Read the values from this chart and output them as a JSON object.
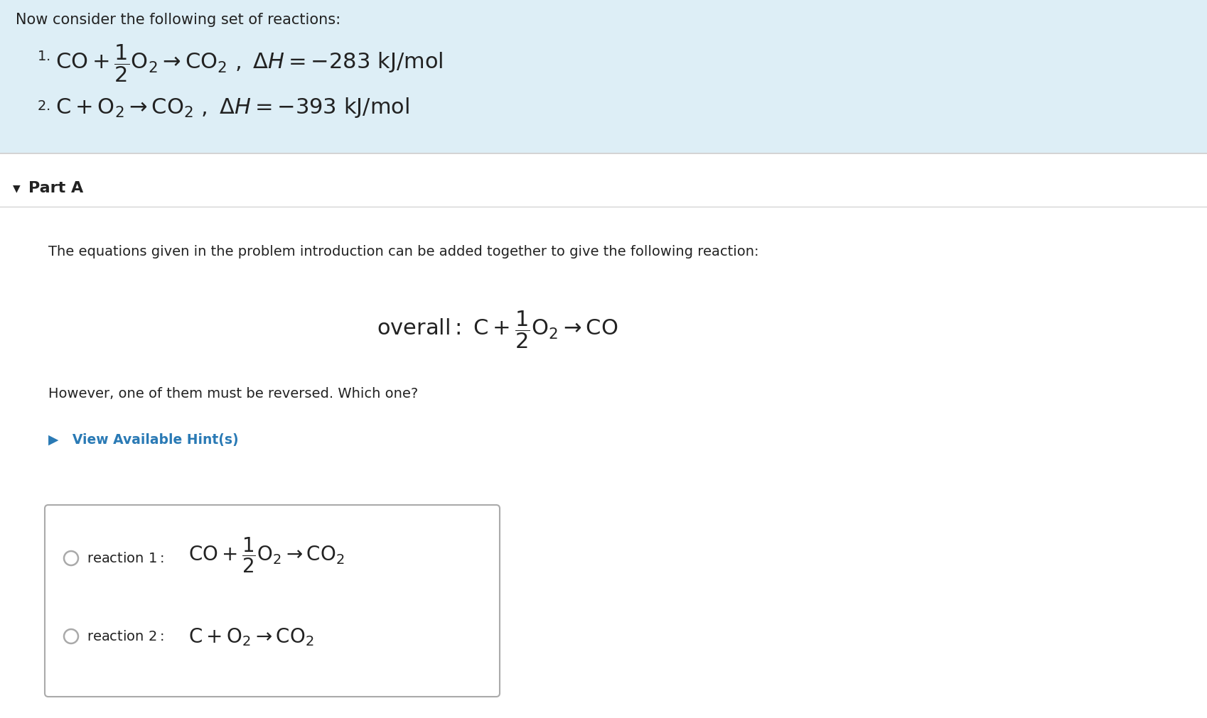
{
  "bg_color": "#ffffff",
  "header_bg": "#ddeef6",
  "header_text_intro": "Now consider the following set of reactions:",
  "text_color": "#222222",
  "hint_color": "#2a7ab5",
  "box_border_color": "#aaaaaa",
  "radio_color": "#aaaaaa",
  "separator_color": "#cccccc",
  "part_label": "Part A",
  "desc_text": "The equations given in the problem introduction can be added together to give the following reaction:",
  "reversed_text": "However, one of them must be reversed. Which one?",
  "hint_text": "▶   View Available Hint(s)"
}
